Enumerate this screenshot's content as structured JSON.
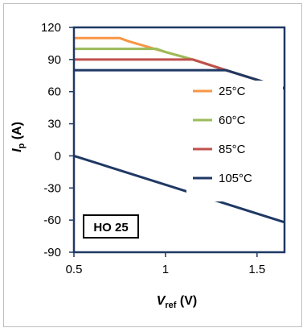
{
  "chart_data": {
    "type": "line",
    "xlabel": {
      "main": "V",
      "sub": "ref",
      "unit": " (V)"
    },
    "ylabel": {
      "main": "I",
      "sub": "p",
      "unit": " (A)"
    },
    "xlim": [
      0.5,
      1.65
    ],
    "ylim": [
      -90,
      120
    ],
    "xticks": [
      0.5,
      1,
      1.5
    ],
    "xtick_labels": [
      "0.5",
      "1",
      "1.5"
    ],
    "yticks": [
      120,
      90,
      60,
      30,
      0,
      -30,
      -60,
      -90
    ],
    "ytick_labels": [
      "120",
      "90",
      "60",
      "30",
      "0",
      "-30",
      "-60",
      "-90"
    ],
    "grid": false,
    "legend_position": "right",
    "annotation": "HO 25",
    "series": [
      {
        "name": "25°C",
        "color": "#F79646",
        "x": [
          0.5,
          0.75,
          0.8,
          1.0,
          1.15,
          1.33,
          1.65
        ],
        "y": [
          110,
          110,
          107,
          97,
          90,
          80,
          63
        ]
      },
      {
        "name": "60°C",
        "color": "#9BBB59",
        "x": [
          0.5,
          0.95,
          1.0,
          1.15,
          1.33,
          1.65
        ],
        "y": [
          100,
          100,
          97,
          90,
          80,
          63
        ]
      },
      {
        "name": "85°C",
        "color": "#C0504D",
        "x": [
          0.5,
          1.15,
          1.33,
          1.65
        ],
        "y": [
          90,
          90,
          80,
          63
        ]
      },
      {
        "name": "105°C",
        "color": "#1F3864",
        "x": [
          0.5,
          1.33,
          1.65
        ],
        "y": [
          80,
          80,
          63
        ]
      },
      {
        "name": "105°C",
        "color": "#1F3864",
        "x": [
          0.5,
          1.65
        ],
        "y": [
          0,
          -62
        ]
      }
    ]
  }
}
